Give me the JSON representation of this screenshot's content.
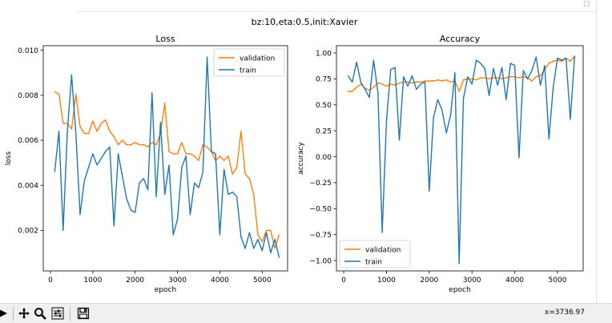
{
  "figure": {
    "suptitle": "bz:10,eta:0.5,init:Xavier",
    "colors": {
      "validation": "#ff7f0e",
      "train": "#1f77b4"
    }
  },
  "toolbar": {
    "coords_text": "x=3736.97",
    "icons": [
      "forward-icon",
      "pan-icon",
      "zoom-icon",
      "configure-icon",
      "save-icon"
    ]
  },
  "chart_data": [
    {
      "type": "line",
      "title": "Loss",
      "xlabel": "epoch",
      "ylabel": "loss",
      "xlim": [
        -170,
        5600
      ],
      "ylim": [
        0.0002,
        0.0102
      ],
      "xticks": [
        0,
        1000,
        2000,
        3000,
        4000,
        5000
      ],
      "xtick_labels": [
        "0",
        "1000",
        "2000",
        "3000",
        "4000",
        "5000"
      ],
      "yticks": [
        0.002,
        0.004,
        0.006,
        0.008,
        0.01
      ],
      "ytick_labels": [
        "0.002",
        "0.004",
        "0.006",
        "0.008",
        "0.010"
      ],
      "legend": "upper right",
      "grid": false,
      "series": [
        {
          "name": "validation",
          "x": [
            100,
            200,
            300,
            400,
            500,
            600,
            700,
            800,
            900,
            1000,
            1100,
            1200,
            1300,
            1400,
            1500,
            1600,
            1700,
            1800,
            1900,
            2000,
            2100,
            2200,
            2300,
            2400,
            2500,
            2600,
            2700,
            2800,
            2900,
            3000,
            3100,
            3200,
            3300,
            3400,
            3500,
            3600,
            3700,
            3800,
            3900,
            4000,
            4100,
            4200,
            4300,
            4400,
            4500,
            4600,
            4700,
            4800,
            4900,
            5000,
            5100,
            5200,
            5300,
            5400
          ],
          "y": [
            0.00815,
            0.00805,
            0.00675,
            0.00675,
            0.0065,
            0.00805,
            0.0066,
            0.0063,
            0.0063,
            0.00685,
            0.0064,
            0.00675,
            0.0069,
            0.0064,
            0.00615,
            0.0058,
            0.006,
            0.0058,
            0.0058,
            0.0059,
            0.0058,
            0.0058,
            0.0057,
            0.0059,
            0.0058,
            0.0063,
            0.00765,
            0.0055,
            0.0054,
            0.0054,
            0.0059,
            0.0054,
            0.0054,
            0.0053,
            0.0051,
            0.0058,
            0.0057,
            0.0055,
            0.0051,
            0.0053,
            0.0051,
            0.0053,
            0.0045,
            0.0048,
            0.0064,
            0.0045,
            0.0043,
            0.0036,
            0.0018,
            0.0015,
            0.002,
            0.002,
            0.0012,
            0.0018
          ]
        },
        {
          "name": "train",
          "x": [
            100,
            200,
            300,
            400,
            500,
            600,
            700,
            800,
            900,
            1000,
            1100,
            1200,
            1300,
            1400,
            1500,
            1600,
            1700,
            1800,
            1900,
            2000,
            2100,
            2200,
            2300,
            2400,
            2500,
            2600,
            2700,
            2800,
            2900,
            3000,
            3100,
            3200,
            3300,
            3400,
            3500,
            3600,
            3700,
            3800,
            3900,
            4000,
            4100,
            4200,
            4300,
            4400,
            4500,
            4600,
            4700,
            4800,
            4900,
            5000,
            5100,
            5200,
            5300,
            5400
          ],
          "y": [
            0.0046,
            0.0064,
            0.002,
            0.0064,
            0.0089,
            0.0063,
            0.0027,
            0.0042,
            0.0048,
            0.0054,
            0.0049,
            0.0052,
            0.0055,
            0.0057,
            0.0022,
            0.0054,
            0.0044,
            0.0034,
            0.0029,
            0.0028,
            0.0041,
            0.0043,
            0.0038,
            0.0081,
            0.0035,
            0.0068,
            0.0036,
            0.0049,
            0.0018,
            0.0025,
            0.0048,
            0.0053,
            0.0027,
            0.0041,
            0.0039,
            0.0046,
            0.0097,
            0.0055,
            0.0054,
            0.0018,
            0.0047,
            0.0036,
            0.0037,
            0.0035,
            0.0017,
            0.0012,
            0.0019,
            0.0012,
            0.0016,
            0.0011,
            0.0019,
            0.001,
            0.0016,
            0.0008
          ]
        }
      ]
    },
    {
      "type": "line",
      "title": "Accuracy",
      "xlabel": "epoch",
      "ylabel": "accuracy",
      "xlim": [
        -170,
        5600
      ],
      "ylim": [
        -1.1,
        1.07
      ],
      "xticks": [
        0,
        1000,
        2000,
        3000,
        4000,
        5000
      ],
      "xtick_labels": [
        "0",
        "1000",
        "2000",
        "3000",
        "4000",
        "5000"
      ],
      "yticks": [
        -1.0,
        -0.75,
        -0.5,
        -0.25,
        0.0,
        0.25,
        0.5,
        0.75,
        1.0
      ],
      "ytick_labels": [
        "−1.00",
        "−0.75",
        "−0.50",
        "−0.25",
        "0.00",
        "0.25",
        "0.50",
        "0.75",
        "1.00"
      ],
      "legend": "lower left",
      "grid": false,
      "series": [
        {
          "name": "validation",
          "x": [
            100,
            200,
            300,
            400,
            500,
            600,
            700,
            800,
            900,
            1000,
            1100,
            1200,
            1300,
            1400,
            1500,
            1600,
            1700,
            1800,
            1900,
            2000,
            2100,
            2200,
            2300,
            2400,
            2500,
            2600,
            2700,
            2800,
            2900,
            3000,
            3100,
            3200,
            3300,
            3400,
            3500,
            3600,
            3700,
            3800,
            3900,
            4000,
            4100,
            4200,
            4300,
            4400,
            4500,
            4600,
            4700,
            4800,
            4900,
            5000,
            5100,
            5200,
            5300,
            5400
          ],
          "y": [
            0.63,
            0.63,
            0.67,
            0.7,
            0.66,
            0.64,
            0.67,
            0.71,
            0.7,
            0.68,
            0.7,
            0.69,
            0.71,
            0.72,
            0.72,
            0.71,
            0.72,
            0.72,
            0.73,
            0.73,
            0.73,
            0.74,
            0.73,
            0.74,
            0.72,
            0.73,
            0.63,
            0.74,
            0.75,
            0.75,
            0.74,
            0.76,
            0.76,
            0.75,
            0.76,
            0.76,
            0.75,
            0.76,
            0.77,
            0.77,
            0.76,
            0.77,
            0.76,
            0.73,
            0.77,
            0.78,
            0.84,
            0.9,
            0.92,
            0.93,
            0.92,
            0.95,
            0.92,
            0.97
          ]
        },
        {
          "name": "train",
          "x": [
            100,
            200,
            300,
            400,
            500,
            600,
            700,
            800,
            900,
            1000,
            1100,
            1200,
            1300,
            1400,
            1500,
            1600,
            1700,
            1800,
            1900,
            2000,
            2100,
            2200,
            2300,
            2400,
            2500,
            2600,
            2700,
            2800,
            2900,
            3000,
            3100,
            3200,
            3300,
            3400,
            3500,
            3600,
            3700,
            3800,
            3900,
            4000,
            4100,
            4200,
            4300,
            4400,
            4500,
            4600,
            4700,
            4800,
            4900,
            5000,
            5100,
            5200,
            5300,
            5400
          ],
          "y": [
            0.78,
            0.72,
            0.91,
            0.72,
            0.65,
            0.57,
            0.93,
            0.62,
            -0.73,
            0.35,
            0.84,
            0.86,
            0.16,
            0.77,
            0.68,
            0.78,
            0.65,
            0.7,
            0.72,
            -0.33,
            0.38,
            0.55,
            0.45,
            0.23,
            0.4,
            0.81,
            -1.03,
            0.56,
            0.77,
            0.7,
            0.93,
            0.9,
            0.85,
            0.59,
            0.85,
            0.69,
            0.86,
            0.55,
            0.9,
            0.88,
            -0.01,
            0.83,
            0.75,
            0.83,
            0.96,
            0.69,
            0.88,
            0.17,
            0.67,
            0.95,
            0.93,
            0.95,
            0.36,
            0.97
          ]
        }
      ]
    }
  ]
}
